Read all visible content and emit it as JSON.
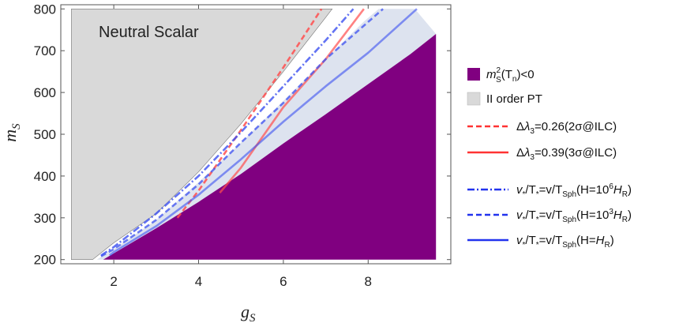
{
  "chart_data": {
    "type": "line",
    "title": "",
    "xlabel": "g",
    "xlabel_sub": "S",
    "ylabel": "m",
    "ylabel_sub": "S",
    "xlim": [
      0.75,
      9.95
    ],
    "ylim": [
      190,
      810
    ],
    "x_ticks": [
      2,
      4,
      6,
      8
    ],
    "y_ticks": [
      200,
      300,
      400,
      500,
      600,
      700,
      800
    ],
    "annotation": "Neutral Scalar",
    "colors": {
      "tachyonic": "#800080",
      "second_order": "#d9d9d9",
      "lightblue": "#dde3ef",
      "delta_lambda": "#ff4d4d",
      "vT_lines": "#3c50f0"
    },
    "regions": [
      {
        "name": "m_S^2(T_n)<0",
        "points": [
          [
            1.75,
            200
          ],
          [
            3,
            275
          ],
          [
            4,
            338
          ],
          [
            5,
            405
          ],
          [
            6,
            478
          ],
          [
            7,
            548
          ],
          [
            8,
            620
          ],
          [
            9,
            692
          ],
          [
            9.6,
            740
          ],
          [
            9.6,
            200
          ]
        ]
      },
      {
        "name": "II order PT",
        "points": [
          [
            1,
            200
          ],
          [
            1,
            800
          ],
          [
            7.15,
            800
          ],
          [
            7,
            780
          ],
          [
            6,
            650
          ],
          [
            5,
            525
          ],
          [
            4,
            410
          ],
          [
            3,
            310
          ],
          [
            2,
            240
          ],
          [
            1.5,
            200
          ]
        ]
      },
      {
        "name": "light-blue",
        "points": [
          [
            1.6,
            200
          ],
          [
            2,
            225
          ],
          [
            3,
            295
          ],
          [
            4,
            385
          ],
          [
            5,
            480
          ],
          [
            6,
            580
          ],
          [
            7,
            680
          ],
          [
            7.9,
            770
          ],
          [
            8.25,
            800
          ],
          [
            9.1,
            800
          ],
          [
            9.6,
            740
          ],
          [
            9,
            692
          ],
          [
            8,
            620
          ],
          [
            7,
            548
          ],
          [
            6,
            478
          ],
          [
            5,
            405
          ],
          [
            4,
            338
          ],
          [
            3,
            275
          ],
          [
            1.75,
            200
          ]
        ]
      }
    ],
    "series": [
      {
        "name": "Δλ3=0.26(2σ@ILC)",
        "style": "dashed",
        "points": [
          [
            3.5,
            300
          ],
          [
            4,
            365
          ],
          [
            5,
            510
          ],
          [
            6,
            660
          ],
          [
            6.9,
            800
          ]
        ]
      },
      {
        "name": "Δλ3=0.39(3σ@ILC)",
        "style": "solid",
        "points": [
          [
            4.5,
            360
          ],
          [
            5,
            420
          ],
          [
            6,
            565
          ],
          [
            7,
            680
          ],
          [
            7.9,
            800
          ]
        ]
      },
      {
        "name": "v*/T*=v/TSph(H=10⁶HR)",
        "style": "dashdot",
        "points": [
          [
            1.7,
            210
          ],
          [
            2,
            230
          ],
          [
            3,
            310
          ],
          [
            4,
            400
          ],
          [
            5,
            505
          ],
          [
            6,
            615
          ],
          [
            7,
            725
          ],
          [
            7.65,
            800
          ]
        ]
      },
      {
        "name": "v*/T*=v/TSph(H=10³HR)",
        "style": "dashed",
        "points": [
          [
            1.7,
            208
          ],
          [
            2,
            225
          ],
          [
            3,
            295
          ],
          [
            4,
            380
          ],
          [
            5,
            480
          ],
          [
            6,
            575
          ],
          [
            7,
            680
          ],
          [
            8.35,
            800
          ]
        ]
      },
      {
        "name": "v*/T*=v/TSph(H=HR)",
        "style": "solid",
        "points": [
          [
            1.9,
            210
          ],
          [
            2,
            218
          ],
          [
            3,
            280
          ],
          [
            4,
            355
          ],
          [
            5,
            440
          ],
          [
            6,
            530
          ],
          [
            7,
            615
          ],
          [
            8,
            695
          ],
          [
            9.15,
            800
          ]
        ]
      }
    ],
    "legend": {
      "placement": "right",
      "regions": [
        {
          "label": "m",
          "sub": "S",
          "sup": "2",
          "args": "(T",
          "argsub": "n",
          "tail": ")<0",
          "color": "#800080"
        },
        {
          "label": "II order PT",
          "color": "#d9d9d9"
        }
      ],
      "lines": [
        {
          "pre": "Δ",
          "sym": "λ",
          "sub": "3",
          "rest": "=0.26(2σ@ILC)"
        },
        {
          "pre": "Δ",
          "sym": "λ",
          "sub": "3",
          "rest": "=0.39(3σ@ILC)"
        },
        {
          "a": "v",
          "asub": "*",
          "b": "/T",
          "bsub": "*",
          "c": "=v/T",
          "csub": "Sph",
          "d": "(H=10",
          "dsup": "6",
          "e": "H",
          "esub": "R",
          "f": ")"
        },
        {
          "a": "v",
          "asub": "*",
          "b": "/T",
          "bsub": "*",
          "c": "=v/T",
          "csub": "Sph",
          "d": "(H=10",
          "dsup": "3",
          "e": "H",
          "esub": "R",
          "f": ")"
        },
        {
          "a": "v",
          "asub": "*",
          "b": "/T",
          "bsub": "*",
          "c": "=v/T",
          "csub": "Sph",
          "d": "(H=",
          "dsup": "",
          "e": "H",
          "esub": "R",
          "f": ")"
        }
      ]
    }
  }
}
